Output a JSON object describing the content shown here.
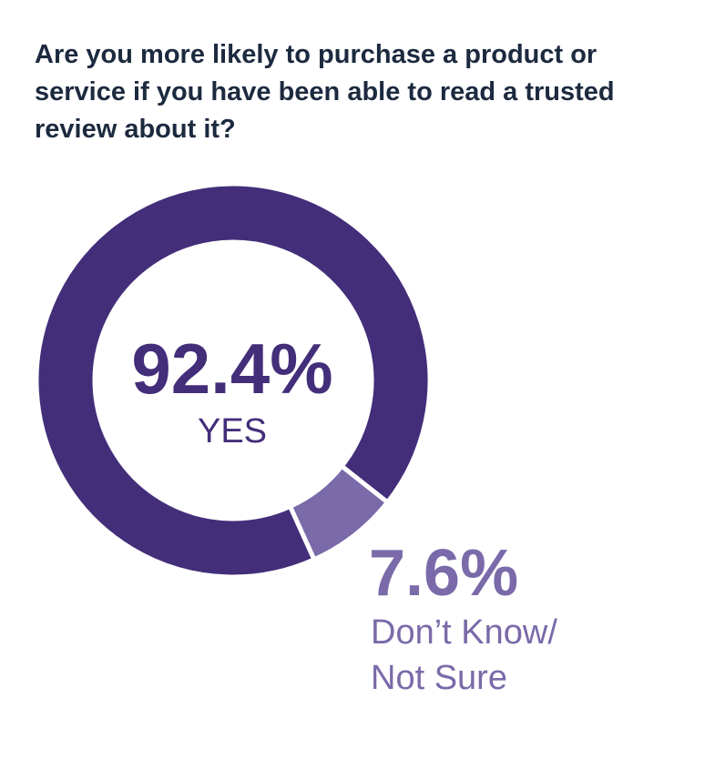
{
  "colors": {
    "primary": "#432e7a",
    "secondary": "#7a6aa9",
    "title": "#1c2a3f"
  },
  "chart_data": {
    "type": "pie",
    "title": "Are you more likely to purchase a product or service if you have been able to read a trusted review about it?",
    "slices": [
      {
        "label": "YES",
        "value": 92.4,
        "value_label": "92.4%",
        "color": "#432e7a"
      },
      {
        "label": "Don’t Know/ Not Sure",
        "value": 7.6,
        "value_label": "7.6%",
        "color": "#7a6aa9"
      }
    ]
  }
}
